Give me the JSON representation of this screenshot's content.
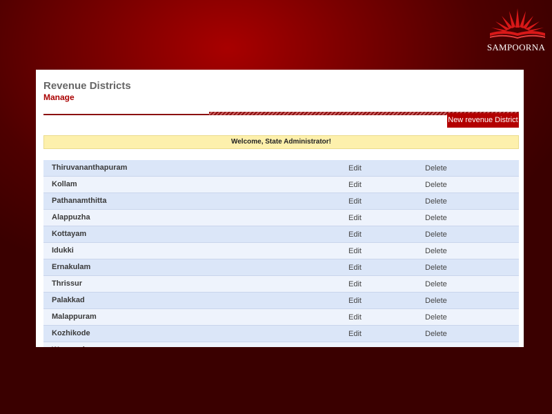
{
  "branding": {
    "logo_icon": "lotus-book-icon",
    "logo_text": "SAMPOORNA"
  },
  "header": {
    "title": "Revenue Districts",
    "subtitle": "Manage"
  },
  "toolbar": {
    "new_label": "New revenue District"
  },
  "welcome": {
    "message": "Welcome, State Administrator!"
  },
  "districts": {
    "edit_label": "Edit",
    "delete_label": "Delete",
    "rows": [
      "Thiruvananthapuram",
      "Kollam",
      "Pathanamthitta",
      "Alappuzha",
      "Kottayam",
      "Idukki",
      "Ernakulam",
      "Thrissur",
      "Palakkad",
      "Malappuram",
      "Kozhikode",
      "Wayanad"
    ]
  },
  "colors": {
    "accent": "#b30000",
    "welcome_bg": "#fdf0ac",
    "row_odd": "#dbe6f8",
    "row_even": "#eef3fc"
  }
}
